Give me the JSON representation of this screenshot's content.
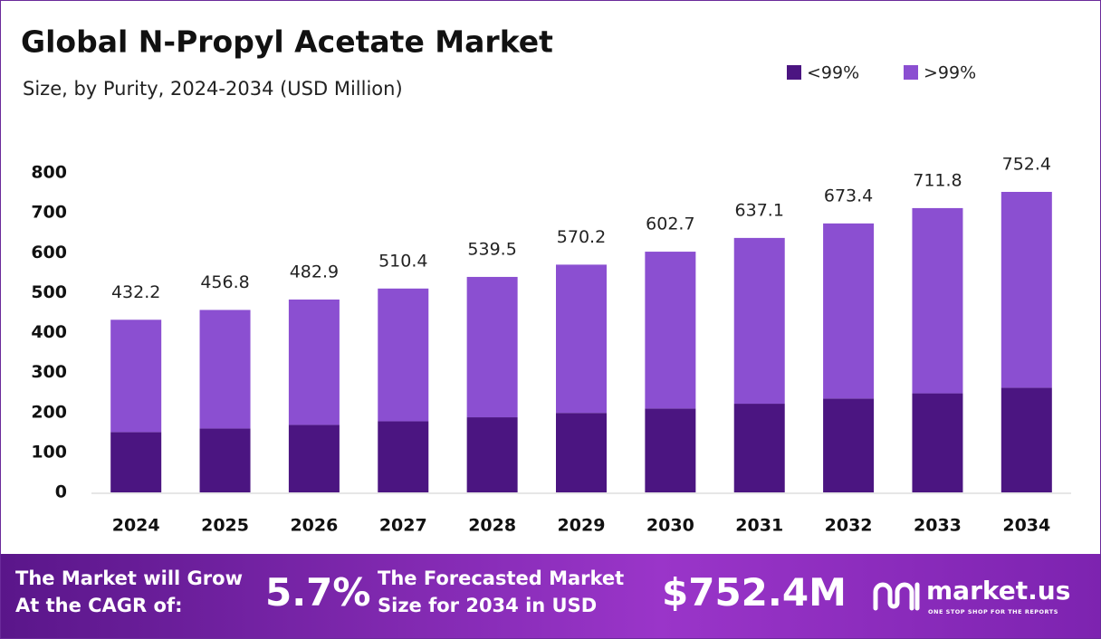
{
  "chart_data": {
    "type": "stacked_bar",
    "title": "Global N-Propyl Acetate Market",
    "subtitle": "Size, by Purity, 2024-2034 (USD Million)",
    "categories": [
      "2024",
      "2025",
      "2026",
      "2027",
      "2028",
      "2029",
      "2030",
      "2031",
      "2032",
      "2033",
      "2034"
    ],
    "series": [
      {
        "name": "<99%",
        "color": "#4b1581",
        "values": [
          151,
          160,
          169,
          178,
          188,
          199,
          210,
          222,
          235,
          248,
          262
        ]
      },
      {
        "name": ">99%",
        "color": "#8b4fd1",
        "values": [
          281.2,
          296.8,
          313.9,
          332.4,
          351.5,
          371.2,
          392.7,
          415.1,
          438.4,
          463.8,
          490.4
        ]
      }
    ],
    "totals": [
      432.2,
      456.8,
      482.9,
      510.4,
      539.5,
      570.2,
      602.7,
      637.1,
      673.4,
      711.8,
      752.4
    ],
    "ylim": [
      0,
      800
    ],
    "yticks": [
      0,
      100,
      200,
      300,
      400,
      500,
      600,
      700,
      800
    ],
    "grid": false,
    "legend": "top-right"
  },
  "footer": {
    "cagr_text": [
      "The Market will Grow",
      "At the CAGR of:"
    ],
    "cagr": "5.7%",
    "forecast_text": [
      "The Forecasted Market",
      "Size for 2034 in USD"
    ],
    "forecast": "$752.4M",
    "brand": "market.us",
    "tagline": "ONE STOP SHOP FOR THE REPORTS"
  }
}
